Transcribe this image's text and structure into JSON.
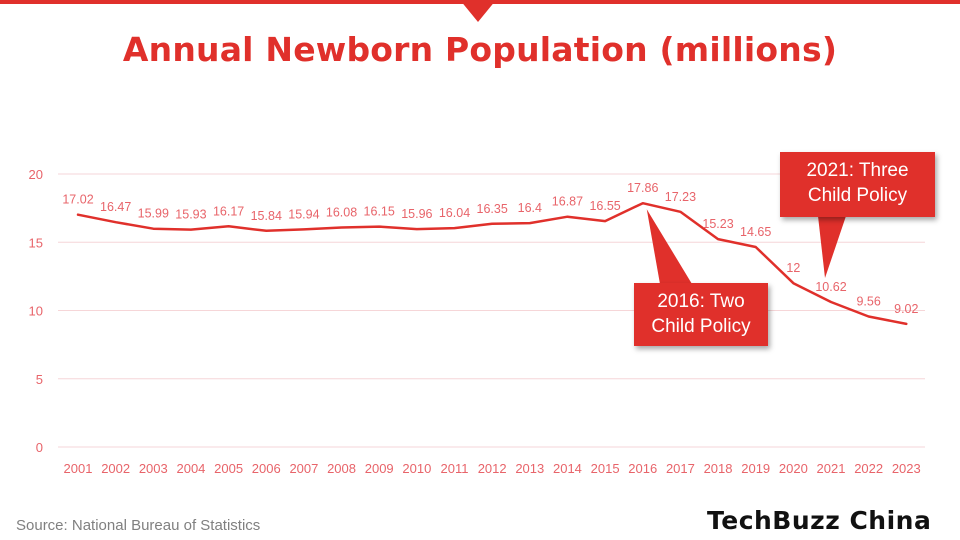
{
  "title": "Annual Newborn Population (millions)",
  "source": "Source: National Bureau of Statistics",
  "logo": "TechBuzz China",
  "colors": {
    "accent": "#e0302b",
    "label": "#e8646a",
    "grid": "#f6d6d8"
  },
  "annotations": [
    {
      "lines": [
        "2016: Two",
        "Child Policy"
      ],
      "year": "2016"
    },
    {
      "lines": [
        "2021: Three",
        "Child Policy"
      ],
      "year": "2021"
    }
  ],
  "chart_data": {
    "type": "line",
    "title": "Annual Newborn Population (millions)",
    "xlabel": "",
    "ylabel": "",
    "ylim": [
      0,
      20
    ],
    "yticks": [
      0,
      5,
      10,
      15,
      20
    ],
    "grid": true,
    "categories": [
      "2001",
      "2002",
      "2003",
      "2004",
      "2005",
      "2006",
      "2007",
      "2008",
      "2009",
      "2010",
      "2011",
      "2012",
      "2013",
      "2014",
      "2015",
      "2016",
      "2017",
      "2018",
      "2019",
      "2020",
      "2021",
      "2022",
      "2023"
    ],
    "values": [
      17.02,
      16.47,
      15.99,
      15.93,
      16.17,
      15.84,
      15.94,
      16.08,
      16.15,
      15.96,
      16.04,
      16.35,
      16.4,
      16.87,
      16.55,
      17.86,
      17.23,
      15.23,
      14.65,
      12,
      10.62,
      9.56,
      9.02
    ],
    "labels": [
      "17.02",
      "16.47",
      "15.99",
      "15.93",
      "16.17",
      "15.84",
      "15.94",
      "16.08",
      "16.15",
      "15.96",
      "16.04",
      "16.35",
      "16.4",
      "16.87",
      "16.55",
      "17.86",
      "17.23",
      "15.23",
      "14.65",
      "12",
      "10.62",
      "9.56",
      "9.02"
    ]
  }
}
